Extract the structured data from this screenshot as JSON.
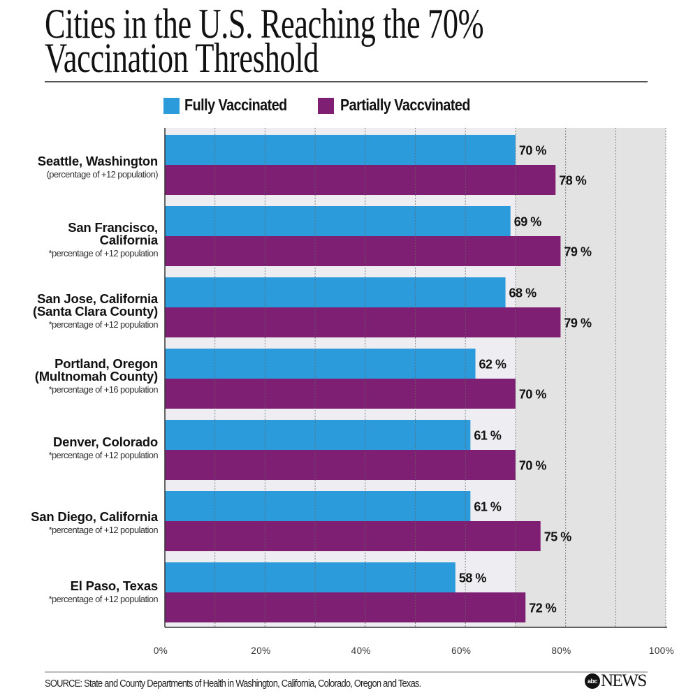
{
  "header": {
    "title_line1": "Cities in the U.S. Reaching the 70%",
    "title_line2": "Vaccination Threshold"
  },
  "legend": [
    {
      "label": "Fully Vaccinated",
      "color": "#2b9bdc"
    },
    {
      "label": "Partially Vaccvinated",
      "color": "#7f1f73"
    }
  ],
  "chart_data": {
    "type": "bar",
    "orientation": "horizontal",
    "title": "Cities in the U.S. Reaching the 70% Vaccination Threshold",
    "categories": [
      {
        "lines": [
          "Seattle, Washington"
        ],
        "note": "(percentage of +12 population)"
      },
      {
        "lines": [
          "San Francisco,",
          "California"
        ],
        "note": "*percentage of +12 population"
      },
      {
        "lines": [
          "San Jose, California",
          "(Santa Clara County)"
        ],
        "note": "*percentage of +12 population"
      },
      {
        "lines": [
          "Portland, Oregon",
          "(Multnomah County)"
        ],
        "note": "*percentage of +16 population"
      },
      {
        "lines": [
          "Denver, Colorado"
        ],
        "note": "*percentage of +12 population"
      },
      {
        "lines": [
          "San Diego, California"
        ],
        "note": "*percentage of +12 population"
      },
      {
        "lines": [
          "El Paso, Texas"
        ],
        "note": "*percentage of +12 population"
      }
    ],
    "series": [
      {
        "name": "Fully Vaccinated",
        "color": "#2b9bdc",
        "values": [
          70,
          69,
          68,
          62,
          61,
          61,
          58
        ],
        "labels": [
          "70 %",
          "69 %",
          "68 %",
          "62 %",
          "61 %",
          "61 %",
          "58 %"
        ]
      },
      {
        "name": "Partially Vaccvinated",
        "color": "#7f1f73",
        "values": [
          78,
          79,
          79,
          70,
          70,
          75,
          72
        ],
        "labels": [
          "78 %",
          "79 %",
          "79 %",
          "70 %",
          "70 %",
          "75 %",
          "72 %"
        ]
      }
    ],
    "xlim": [
      0,
      100
    ],
    "xticks": [
      0,
      20,
      40,
      60,
      80,
      100
    ],
    "xtick_labels": [
      "0%",
      "20%",
      "40%",
      "60%",
      "80%",
      "100%"
    ],
    "grid_step": 10,
    "threshold": 70,
    "colors": {
      "plot_bg": "#eeeef2",
      "threshold_bg": "#e3e3e3",
      "grid": "#666666"
    },
    "xlabel": "",
    "ylabel": ""
  },
  "footer": {
    "source": "SOURCE: State and County Departments of Health in Washington, California, Colorado, Oregon and Texas.",
    "logo_abc": "abc",
    "logo_news": "NEWS"
  }
}
